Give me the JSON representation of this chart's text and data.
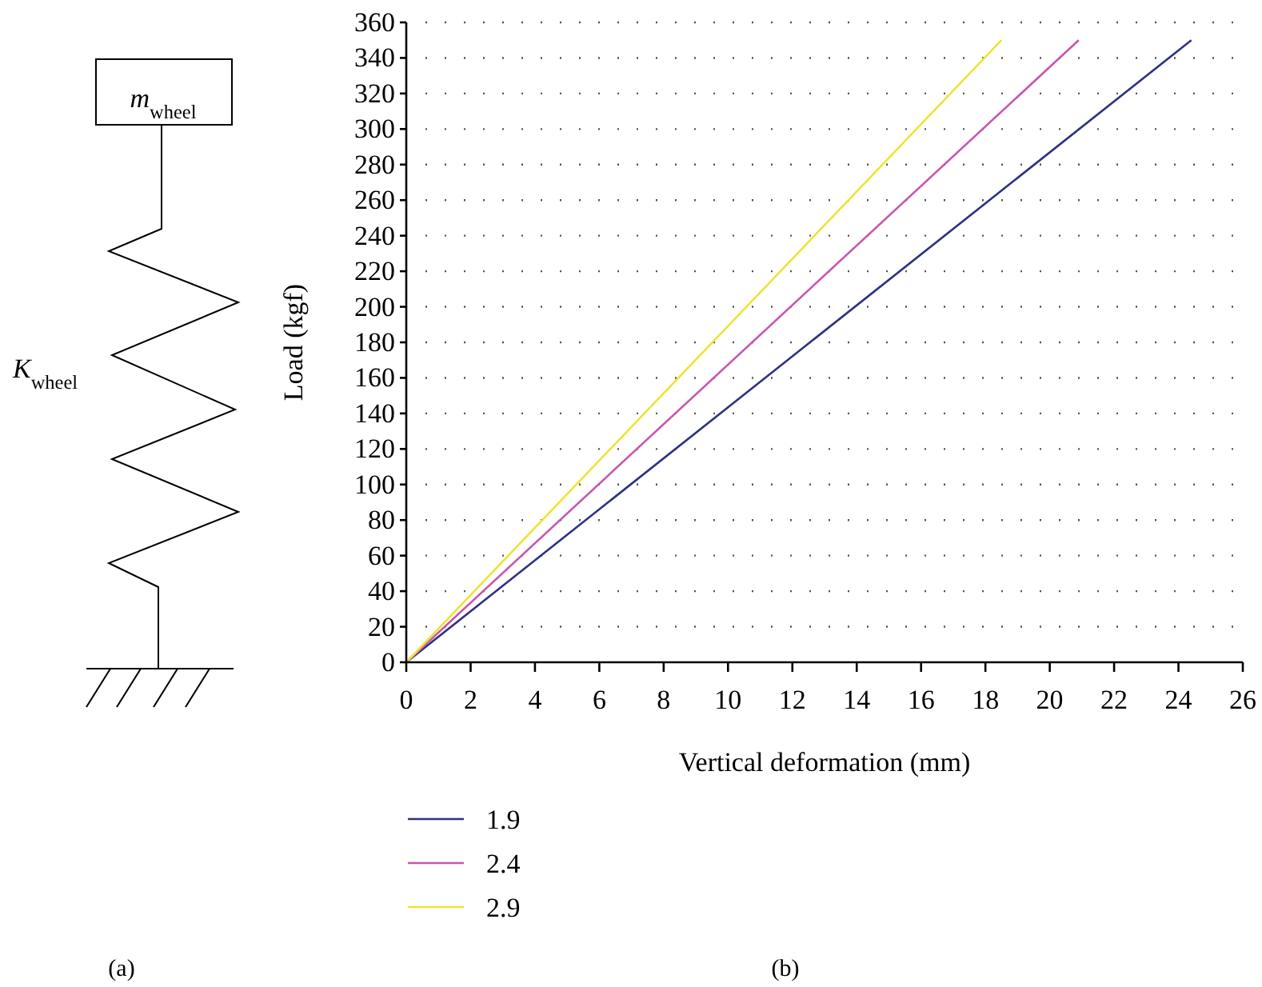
{
  "chart_data": {
    "type": "line",
    "xlabel": "Vertical deformation (mm)",
    "ylabel": "Load (kgf)",
    "xlim": [
      0,
      26
    ],
    "xticks": [
      0,
      2,
      4,
      6,
      8,
      10,
      12,
      14,
      16,
      18,
      20,
      22,
      24,
      26
    ],
    "ylim": [
      0,
      360
    ],
    "yticks": [
      0,
      20,
      40,
      60,
      80,
      100,
      120,
      140,
      160,
      180,
      200,
      220,
      240,
      260,
      280,
      300,
      320,
      340,
      360
    ],
    "grid": "y",
    "legend": "bottom",
    "line_style": "solid",
    "marker": "none",
    "series": [
      {
        "name": "1.9",
        "color": "#2e3182",
        "x": [
          0,
          24.4
        ],
        "values": [
          0,
          350
        ]
      },
      {
        "name": "2.4",
        "color": "#c856b0",
        "x": [
          0,
          20.9
        ],
        "values": [
          0,
          350
        ]
      },
      {
        "name": "2.9",
        "color": "#ece534",
        "x": [
          0,
          18.5
        ],
        "values": [
          0,
          350
        ]
      }
    ],
    "annotations": [
      "m$_{wheel}$",
      "K$_{wheel}$",
      "(a)",
      "(b)"
    ]
  }
}
